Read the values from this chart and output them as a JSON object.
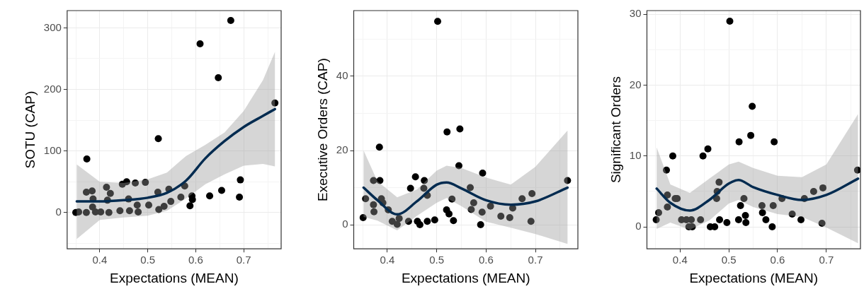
{
  "chart_data": [
    {
      "type": "scatter",
      "xlabel": "Expectations (MEAN)",
      "ylabel": "SOTU (CAP)",
      "grid": true,
      "xlim": [
        0.332,
        0.778
      ],
      "ylim": [
        -59,
        328
      ],
      "xticks": [
        {
          "value": 0.35,
          "label": null
        },
        0.4,
        {
          "value": 0.45,
          "label": null
        },
        0.5,
        {
          "value": 0.55,
          "label": null
        },
        0.6,
        {
          "value": 0.65,
          "label": null
        },
        0.7,
        {
          "value": 0.75,
          "label": null
        }
      ],
      "yticks": [
        {
          "value": -50,
          "label": null
        },
        0,
        {
          "value": 50,
          "label": null
        },
        100,
        {
          "value": 150,
          "label": null
        },
        200,
        {
          "value": 250,
          "label": null
        },
        300
      ],
      "series": [
        {
          "marker": "circle",
          "color": "#000000",
          "x": [
            0.35,
            0.356,
            0.373,
            0.372,
            0.372,
            0.384,
            0.386,
            0.385,
            0.391,
            0.402,
            0.414,
            0.422,
            0.416,
            0.419,
            0.442,
            0.447,
            0.456,
            0.474,
            0.46,
            0.462,
            0.478,
            0.48,
            0.495,
            0.502,
            0.521,
            0.522,
            0.523,
            0.534,
            0.544,
            0.548,
            0.569,
            0.577,
            0.592,
            0.593,
            0.588,
            0.609,
            0.629,
            0.647,
            0.654,
            0.673,
            0.691,
            0.693,
            0.765
          ],
          "values": [
            0,
            1,
            87,
            0,
            33,
            35,
            22,
            9,
            1,
            1,
            41,
            31,
            20,
            0,
            3,
            46,
            50,
            48,
            22,
            3,
            12,
            1,
            49,
            12,
            33,
            120,
            5,
            10,
            38,
            18,
            25,
            43,
            27,
            21,
            11,
            274,
            27,
            219,
            36,
            312,
            25,
            53,
            178
          ]
        },
        {
          "type": "line",
          "color": "#022b50",
          "x": [
            0.352,
            0.4,
            0.45,
            0.5,
            0.54,
            0.58,
            0.62,
            0.66,
            0.7,
            0.74,
            0.765
          ],
          "values": [
            18,
            18,
            20,
            24,
            32,
            52,
            88,
            116,
            139,
            157,
            168
          ],
          "lower": [
            -43,
            -12,
            -8,
            -5,
            3,
            23,
            46,
            62,
            76,
            79,
            75
          ],
          "upper": [
            78,
            50,
            48,
            54,
            65,
            92,
            110,
            130,
            165,
            215,
            261
          ]
        }
      ]
    },
    {
      "type": "scatter",
      "xlabel": "Expectations (MEAN)",
      "ylabel": "Executive Orders (CAP)",
      "grid": true,
      "xlim": [
        0.332,
        0.786
      ],
      "ylim": [
        -6.5,
        57.7
      ],
      "xticks": [
        {
          "value": 0.35,
          "label": null
        },
        0.4,
        {
          "value": 0.45,
          "label": null
        },
        0.5,
        {
          "value": 0.55,
          "label": null
        },
        0.6,
        {
          "value": 0.65,
          "label": null
        },
        0.7,
        {
          "value": 0.75,
          "label": null
        }
      ],
      "yticks": [
        0,
        {
          "value": 10,
          "label": null
        },
        20,
        {
          "value": 30,
          "label": null
        },
        40,
        {
          "value": 50,
          "label": null
        }
      ],
      "series": [
        {
          "marker": "circle",
          "color": "#000000",
          "x": [
            0.351,
            0.356,
            0.372,
            0.385,
            0.384,
            0.372,
            0.373,
            0.388,
            0.391,
            0.402,
            0.41,
            0.42,
            0.424,
            0.443,
            0.447,
            0.457,
            0.461,
            0.466,
            0.475,
            0.474,
            0.481,
            0.481,
            0.496,
            0.502,
            0.52,
            0.521,
            0.525,
            0.534,
            0.531,
            0.545,
            0.547,
            0.568,
            0.57,
            0.575,
            0.593,
            0.592,
            0.589,
            0.609,
            0.63,
            0.648,
            0.654,
            0.673,
            0.693,
            0.691,
            0.765
          ],
          "values": [
            1.9,
            7.0,
            11.9,
            11.9,
            20.9,
            5.4,
            3.5,
            7.0,
            5.9,
            4.0,
            0.9,
            0.1,
            1.7,
            0.9,
            9.8,
            12.9,
            0.9,
            0,
            11.9,
            9.8,
            7.9,
            0.9,
            1.3,
            54.8,
            4.0,
            25.0,
            2.9,
            1.1,
            6.9,
            15.9,
            25.8,
            10.0,
            4.1,
            5.9,
            13.9,
            3.4,
            0,
            5.0,
            2.3,
            1.9,
            4.5,
            7.0,
            8.4,
            0.9,
            11.9
          ]
        },
        {
          "type": "line",
          "color": "#022b50",
          "x": [
            0.352,
            0.38,
            0.42,
            0.46,
            0.5,
            0.52,
            0.55,
            0.6,
            0.65,
            0.7,
            0.765
          ],
          "values": [
            10.0,
            6.6,
            2.8,
            6.3,
            10.8,
            11.4,
            9.8,
            6.6,
            5.4,
            6.3,
            10.0
          ],
          "lower": [
            2.1,
            1.1,
            -1.5,
            2.4,
            5.9,
            7.2,
            5.0,
            0.8,
            -0.8,
            -2.5,
            -5.2
          ],
          "upper": [
            20.0,
            11.7,
            7.4,
            9.5,
            14.6,
            15.9,
            15.3,
            12.7,
            10.8,
            15.6,
            25.4
          ]
        }
      ]
    },
    {
      "type": "scatter",
      "xlabel": "Expectations (MEAN)",
      "ylabel": "Significant Orders",
      "grid": true,
      "xlim": [
        0.332,
        0.77
      ],
      "ylim": [
        -3.1,
        30.5
      ],
      "xticks": [
        {
          "value": 0.35,
          "label": null
        },
        0.4,
        {
          "value": 0.45,
          "label": null
        },
        0.5,
        {
          "value": 0.55,
          "label": null
        },
        0.6,
        {
          "value": 0.65,
          "label": null
        },
        0.7,
        {
          "value": 0.75,
          "label": null
        }
      ],
      "yticks": [
        0,
        {
          "value": 5,
          "label": null
        },
        10,
        {
          "value": 15,
          "label": null
        },
        20,
        {
          "value": 25,
          "label": null
        },
        30
      ],
      "series": [
        {
          "marker": "circle",
          "color": "#000000",
          "x": [
            0.351,
            0.356,
            0.372,
            0.374,
            0.374,
            0.385,
            0.39,
            0.394,
            0.403,
            0.413,
            0.418,
            0.423,
            0.425,
            0.442,
            0.447,
            0.457,
            0.462,
            0.471,
            0.475,
            0.476,
            0.48,
            0.481,
            0.496,
            0.502,
            0.52,
            0.521,
            0.524,
            0.531,
            0.534,
            0.535,
            0.545,
            0.548,
            0.568,
            0.569,
            0.576,
            0.589,
            0.591,
            0.593,
            0.609,
            0.63,
            0.648,
            0.655,
            0.674,
            0.693,
            0.691,
            0.764
          ],
          "values": [
            1.0,
            2.0,
            8.0,
            4.5,
            2.8,
            10.0,
            4.0,
            4.0,
            1.0,
            1.0,
            0,
            1.0,
            0,
            1.0,
            10.0,
            11.0,
            0,
            0,
            4.0,
            5.0,
            6.3,
            1.0,
            0.6,
            29.0,
            1.0,
            12.0,
            3.0,
            4.0,
            1.6,
            0.6,
            12.9,
            17.0,
            3.0,
            2.0,
            1.0,
            0,
            3.0,
            12.0,
            4.0,
            1.8,
            1.0,
            4.0,
            5.0,
            5.5,
            0.5,
            8.0
          ]
        },
        {
          "type": "line",
          "color": "#022b50",
          "x": [
            0.352,
            0.38,
            0.42,
            0.46,
            0.5,
            0.52,
            0.55,
            0.6,
            0.65,
            0.7,
            0.765
          ],
          "values": [
            5.4,
            3.4,
            2.3,
            3.8,
            6.1,
            6.6,
            5.6,
            4.5,
            3.8,
            4.5,
            6.8
          ],
          "lower": [
            -0.3,
            0.6,
            -0.4,
            0.9,
            3.3,
            3.8,
            2.8,
            1.8,
            1.4,
            -0.1,
            -2.3
          ],
          "upper": [
            11.2,
            6.0,
            4.8,
            6.8,
            8.8,
            9.2,
            8.3,
            7.2,
            7.0,
            8.8,
            15.9
          ]
        }
      ]
    }
  ]
}
